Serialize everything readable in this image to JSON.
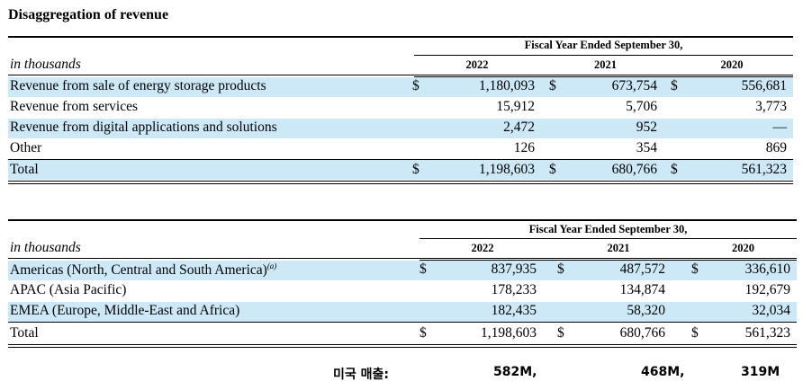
{
  "title": "Disaggregation of revenue",
  "table1": {
    "period_header": "Fiscal Year Ended September 30,",
    "units_label": "in thousands",
    "years": [
      "2022",
      "2021",
      "2020"
    ],
    "rows": [
      {
        "label": "Revenue from sale of energy storage products",
        "c1_cur": "$",
        "v2022": "1,180,093",
        "c2_cur": "$",
        "v2021": "673,754",
        "c3_cur": "$",
        "v2020": "556,681"
      },
      {
        "label": "Revenue from services",
        "c1_cur": "",
        "v2022": "15,912",
        "c2_cur": "",
        "v2021": "5,706",
        "c3_cur": "",
        "v2020": "3,773"
      },
      {
        "label": "Revenue from digital applications and solutions",
        "c1_cur": "",
        "v2022": "2,472",
        "c2_cur": "",
        "v2021": "952",
        "c3_cur": "",
        "v2020": "—"
      },
      {
        "label": "Other",
        "c1_cur": "",
        "v2022": "126",
        "c2_cur": "",
        "v2021": "354",
        "c3_cur": "",
        "v2020": "869"
      },
      {
        "label": "Total",
        "c1_cur": "$",
        "v2022": "1,198,603",
        "c2_cur": "$",
        "v2021": "680,766",
        "c3_cur": "$",
        "v2020": "561,323"
      }
    ]
  },
  "table2": {
    "period_header": "Fiscal Year Ended September 30,",
    "units_label": "in thousands",
    "years": [
      "2022",
      "2021",
      "2020"
    ],
    "footnote_marker": "(a)",
    "rows": [
      {
        "label": "Americas (North, Central and South America)",
        "c1_cur": "$",
        "v2022": "837,935",
        "c2_cur": "$",
        "v2021": "487,572",
        "c3_cur": "$",
        "v2020": "336,610"
      },
      {
        "label": "APAC (Asia Pacific)",
        "c1_cur": "",
        "v2022": "178,233",
        "c2_cur": "",
        "v2021": "134,874",
        "c3_cur": "",
        "v2020": "192,679"
      },
      {
        "label": "EMEA (Europe, Middle-East and Africa)",
        "c1_cur": "",
        "v2022": "182,435",
        "c2_cur": "",
        "v2021": "58,320",
        "c3_cur": "",
        "v2020": "32,034"
      },
      {
        "label": "Total",
        "c1_cur": "$",
        "v2022": "1,198,603",
        "c2_cur": "$",
        "v2021": "680,766",
        "c3_cur": "$",
        "v2020": "561,323"
      }
    ]
  },
  "us_sales": {
    "label": "미국 매출:",
    "v2022": "582M,",
    "v2021": "468M,",
    "v2020": "319M"
  },
  "colors": {
    "band": "#cde9f8"
  }
}
